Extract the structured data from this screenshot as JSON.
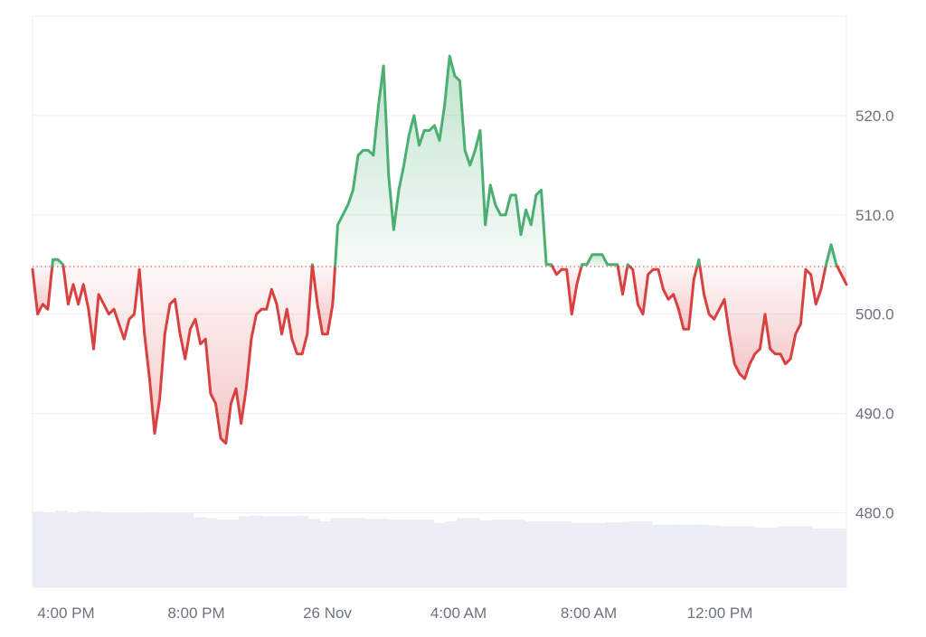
{
  "chart_data": {
    "type": "area",
    "title": "",
    "xlabel": "",
    "ylabel": "",
    "x_ticks": [
      "4:00 PM",
      "8:00 PM",
      "26 Nov",
      "4:00 AM",
      "8:00 AM",
      "12:00 PM"
    ],
    "y_ticks": [
      "480.0",
      "490.0",
      "500.0",
      "510.0",
      "520.0"
    ],
    "ylim": [
      472.5,
      530
    ],
    "baseline": 504.8,
    "grid": true,
    "legend": "none",
    "colors": {
      "up_line": "#4caf72",
      "down_line": "#d94040",
      "up_fill": "#4caf72",
      "down_fill": "#d94040",
      "baseline": "#d94040",
      "grid": "#eceff3",
      "volume": "#eaedf3",
      "axis_text": "#6b7280"
    },
    "series": [
      {
        "values": [
          504.5,
          500,
          501,
          500.5,
          505.5,
          505.5,
          505,
          501,
          503,
          501,
          503,
          500.5,
          496.5,
          502,
          501,
          500,
          500.5,
          499,
          497.5,
          499.5,
          500,
          504.5,
          498,
          493.5,
          488,
          491.5,
          498,
          501,
          501.5,
          498,
          495.5,
          498.5,
          499.5,
          497,
          497.5,
          492,
          491,
          487.5,
          487,
          491,
          492.5,
          489,
          492.5,
          497.5,
          500,
          500.5,
          500.5,
          502.5,
          501,
          498,
          500.5,
          497.5,
          496,
          496,
          498,
          505,
          501,
          498,
          498,
          501,
          509,
          510,
          511,
          512.5,
          516,
          516.5,
          516.5,
          516,
          521,
          525,
          514,
          508.5,
          512.5,
          515,
          518,
          520,
          517,
          518.5,
          518.5,
          519,
          517.5,
          521,
          526,
          524,
          523.5,
          516.5,
          515,
          516.5,
          518.5,
          509,
          513,
          511,
          510,
          510,
          512,
          512,
          508,
          510.5,
          509,
          512,
          512.5,
          505,
          505,
          504,
          504.5,
          504.5,
          500,
          503,
          505,
          505,
          506,
          506,
          506,
          505,
          505,
          505,
          502,
          505,
          504.5,
          501,
          500,
          504,
          504.5,
          504.5,
          502.5,
          501.5,
          502,
          500.5,
          498.5,
          498.5,
          503.5,
          505.5,
          502,
          500,
          499.5,
          500.5,
          501.5,
          498,
          495,
          494,
          493.5,
          495,
          496,
          496.5,
          500,
          496.5,
          496,
          496,
          495,
          495.5,
          498,
          499,
          504.5,
          504,
          501,
          502.5,
          505,
          507,
          505,
          504,
          503
        ]
      }
    ],
    "volume": [
      0.82,
      0.81,
      0.83,
      0.81,
      0.83,
      0.82,
      0.8,
      0.8,
      0.8,
      0.8,
      0.81,
      0.8,
      0.8,
      0.8,
      0.75,
      0.74,
      0.72,
      0.72,
      0.76,
      0.77,
      0.76,
      0.76,
      0.76,
      0.77,
      0.73,
      0.7,
      0.74,
      0.74,
      0.74,
      0.73,
      0.73,
      0.72,
      0.72,
      0.72,
      0.72,
      0.68,
      0.7,
      0.74,
      0.74,
      0.71,
      0.72,
      0.72,
      0.72,
      0.7,
      0.7,
      0.7,
      0.7,
      0.68,
      0.68,
      0.68,
      0.69,
      0.69,
      0.7,
      0.7,
      0.66,
      0.66,
      0.66,
      0.66,
      0.66,
      0.65,
      0.64,
      0.64,
      0.64,
      0.62,
      0.62,
      0.64,
      0.64,
      0.64,
      0.61,
      0.61,
      0.61
    ]
  }
}
